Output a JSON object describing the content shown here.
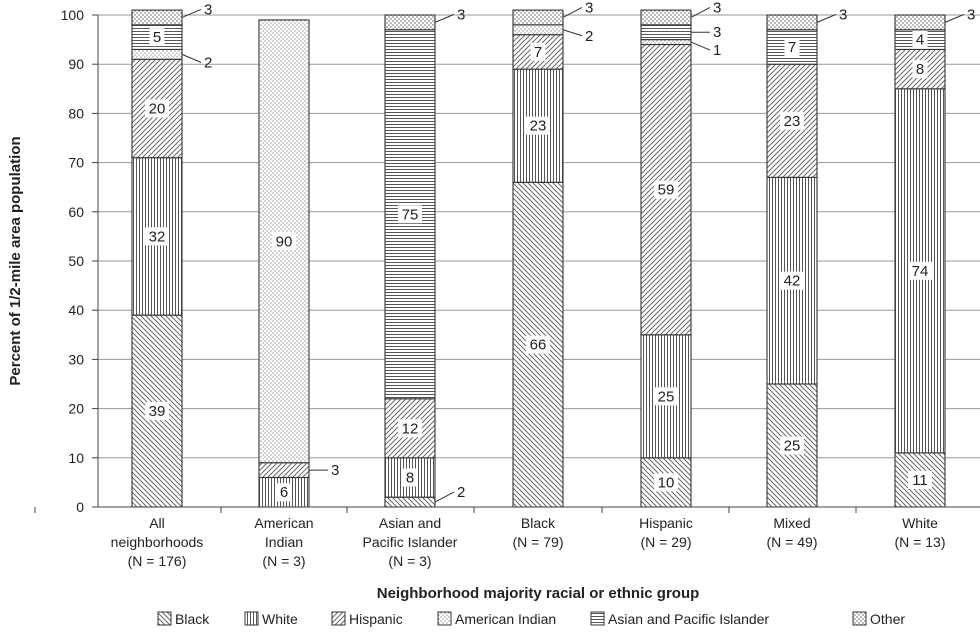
{
  "chart_data": {
    "type": "bar",
    "stacked": true,
    "xlabel": "Neighborhood majority racial or ethnic group",
    "ylabel": "Percent of 1/2-mile area population",
    "ylim": [
      0,
      100
    ],
    "yticks": [
      0,
      10,
      20,
      30,
      40,
      50,
      60,
      70,
      80,
      90,
      100
    ],
    "grid": "horizontal",
    "legend_position": "bottom",
    "categories": [
      {
        "name": "All neighborhoods",
        "lines": [
          "All",
          "neighborhoods",
          "(N = 176)"
        ]
      },
      {
        "name": "American Indian",
        "lines": [
          "American",
          "Indian",
          "(N = 3)"
        ]
      },
      {
        "name": "Asian and Pacific Islander",
        "lines": [
          "Asian and",
          "Pacific Islander",
          "(N = 3)"
        ]
      },
      {
        "name": "Black",
        "lines": [
          "Black",
          "(N = 79)"
        ]
      },
      {
        "name": "Hispanic",
        "lines": [
          "Hispanic",
          "(N = 29)"
        ]
      },
      {
        "name": "Mixed",
        "lines": [
          "Mixed",
          "(N = 49)"
        ]
      },
      {
        "name": "White",
        "lines": [
          "White",
          "(N = 13)"
        ]
      }
    ],
    "series": [
      {
        "name": "Black",
        "pattern": "diag-back",
        "values": [
          39,
          0,
          2,
          66,
          10,
          25,
          11
        ]
      },
      {
        "name": "White",
        "pattern": "vertical",
        "values": [
          32,
          6,
          8,
          23,
          25,
          42,
          74
        ]
      },
      {
        "name": "Hispanic",
        "pattern": "diag-fwd",
        "values": [
          20,
          3,
          12,
          7,
          59,
          23,
          8
        ]
      },
      {
        "name": "American Indian",
        "pattern": "dots",
        "values": [
          2,
          90,
          0,
          2,
          1,
          0,
          0
        ]
      },
      {
        "name": "Asian and Pacific Islander",
        "pattern": "horizontal",
        "values": [
          5,
          0,
          75,
          0,
          3,
          7,
          4
        ]
      },
      {
        "name": "Other",
        "pattern": "checker",
        "values": [
          3,
          0,
          3,
          3,
          3,
          3,
          3
        ]
      }
    ],
    "annotations": [
      {
        "text": "3",
        "category": 0,
        "series": 5
      },
      {
        "text": "2",
        "category": 0,
        "series": 3
      },
      {
        "text": "3",
        "category": 1,
        "series": 2
      },
      {
        "text": "2",
        "category": 2,
        "series": 0
      },
      {
        "text": "3",
        "category": 2,
        "series": 5
      },
      {
        "text": "3",
        "category": 3,
        "series": 5
      },
      {
        "text": "2",
        "category": 3,
        "series": 3
      },
      {
        "text": "3",
        "category": 4,
        "series": 5
      },
      {
        "text": "3",
        "category": 4,
        "series": 4
      },
      {
        "text": "1",
        "category": 4,
        "series": 3
      },
      {
        "text": "3",
        "category": 5,
        "series": 5
      },
      {
        "text": "3",
        "category": 6,
        "series": 5
      }
    ],
    "inside_labels": [
      {
        "text": "39",
        "category": 0,
        "series": 0
      },
      {
        "text": "32",
        "category": 0,
        "series": 1
      },
      {
        "text": "20",
        "category": 0,
        "series": 2
      },
      {
        "text": "5",
        "category": 0,
        "series": 4
      },
      {
        "text": "6",
        "category": 1,
        "series": 1
      },
      {
        "text": "90",
        "category": 1,
        "series": 3
      },
      {
        "text": "8",
        "category": 2,
        "series": 1
      },
      {
        "text": "12",
        "category": 2,
        "series": 2
      },
      {
        "text": "75",
        "category": 2,
        "series": 4
      },
      {
        "text": "66",
        "category": 3,
        "series": 0
      },
      {
        "text": "23",
        "category": 3,
        "series": 1
      },
      {
        "text": "7",
        "category": 3,
        "series": 2
      },
      {
        "text": "10",
        "category": 4,
        "series": 0
      },
      {
        "text": "25",
        "category": 4,
        "series": 1
      },
      {
        "text": "59",
        "category": 4,
        "series": 2
      },
      {
        "text": "25",
        "category": 5,
        "series": 0
      },
      {
        "text": "42",
        "category": 5,
        "series": 1
      },
      {
        "text": "23",
        "category": 5,
        "series": 2
      },
      {
        "text": "7",
        "category": 5,
        "series": 4
      },
      {
        "text": "11",
        "category": 6,
        "series": 0
      },
      {
        "text": "74",
        "category": 6,
        "series": 1
      },
      {
        "text": "8",
        "category": 6,
        "series": 2
      },
      {
        "text": "4",
        "category": 6,
        "series": 4
      }
    ]
  }
}
